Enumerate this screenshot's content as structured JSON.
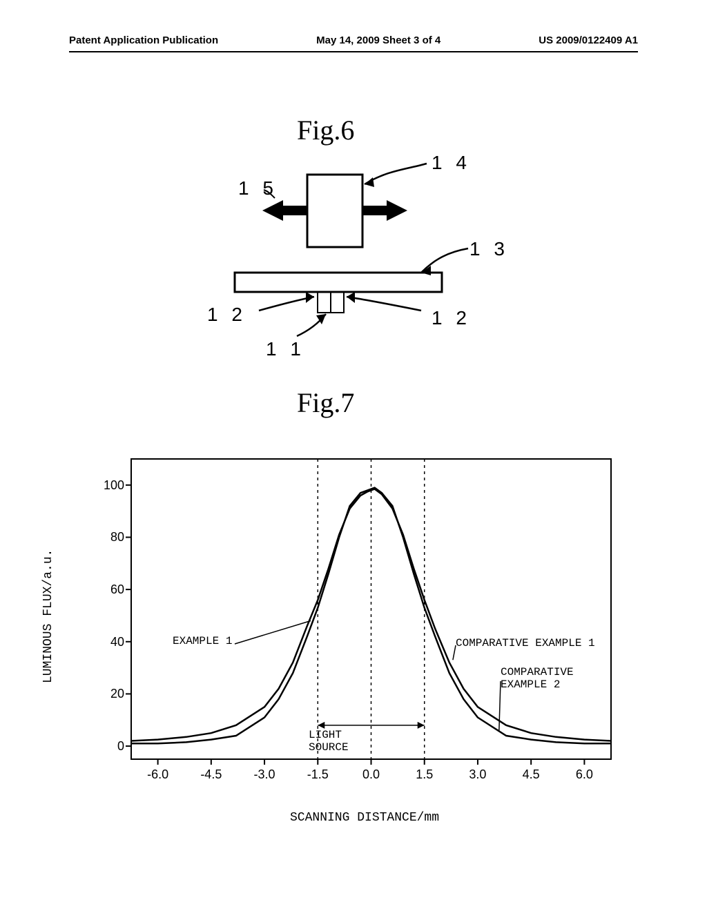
{
  "header": {
    "left": "Patent Application Publication",
    "center": "May 14, 2009  Sheet 3 of 4",
    "right": "US 2009/0122409 A1"
  },
  "fig6": {
    "title": "Fig.6",
    "labels": {
      "n11": "1 1",
      "n12a": "1 2",
      "n12b": "1 2",
      "n13": "1 3",
      "n14": "1 4",
      "n15": "1 5"
    }
  },
  "fig7": {
    "title": "Fig.7",
    "type": "line",
    "x_label": "SCANNING DISTANCE/mm",
    "y_label": "LUMINOUS FLUX/a.u.",
    "xlim": [
      -6.75,
      6.75
    ],
    "ylim": [
      -5,
      110
    ],
    "x_ticks": [
      -6.0,
      -4.5,
      -3.0,
      -1.5,
      0.0,
      1.5,
      3.0,
      4.5,
      6.0
    ],
    "y_ticks": [
      0,
      20,
      40,
      60,
      80,
      100
    ],
    "grid_color": "#000000",
    "background_color": "#ffffff",
    "vlines_dashed": [
      -1.5,
      0,
      1.5
    ],
    "light_source_label": "LIGHT\nSOURCE",
    "light_source_range": [
      -1.5,
      1.5
    ],
    "annotations": {
      "example1": "EXAMPLE 1",
      "comp1": "COMPARATIVE EXAMPLE 1",
      "comp2": "COMPARATIVE\nEXAMPLE 2"
    },
    "series": [
      {
        "name": "example1",
        "color": "#000000",
        "line_width": 2.5,
        "data": [
          [
            -6.75,
            1
          ],
          [
            -6.0,
            1
          ],
          [
            -5.2,
            1.5
          ],
          [
            -4.5,
            2.5
          ],
          [
            -3.8,
            4
          ],
          [
            -3.0,
            11
          ],
          [
            -2.6,
            18
          ],
          [
            -2.2,
            28
          ],
          [
            -1.8,
            42
          ],
          [
            -1.5,
            53
          ],
          [
            -1.2,
            66
          ],
          [
            -0.9,
            80
          ],
          [
            -0.6,
            92
          ],
          [
            -0.3,
            97
          ],
          [
            -0.1,
            98
          ],
          [
            0.1,
            99
          ],
          [
            0.3,
            97
          ],
          [
            0.6,
            92
          ],
          [
            0.9,
            80
          ],
          [
            1.2,
            66
          ],
          [
            1.5,
            53
          ],
          [
            1.8,
            42
          ],
          [
            2.2,
            28
          ],
          [
            2.6,
            18
          ],
          [
            3.0,
            11
          ],
          [
            3.8,
            4
          ],
          [
            4.5,
            2.5
          ],
          [
            5.2,
            1.5
          ],
          [
            6.0,
            1
          ],
          [
            6.75,
            1
          ]
        ]
      },
      {
        "name": "comparative1_2",
        "color": "#000000",
        "line_width": 2.5,
        "data": [
          [
            -6.75,
            2
          ],
          [
            -6.0,
            2.5
          ],
          [
            -5.2,
            3.5
          ],
          [
            -4.5,
            5
          ],
          [
            -3.8,
            8
          ],
          [
            -3.0,
            15
          ],
          [
            -2.6,
            22
          ],
          [
            -2.2,
            32
          ],
          [
            -1.8,
            46
          ],
          [
            -1.5,
            56
          ],
          [
            -1.2,
            68
          ],
          [
            -0.9,
            81
          ],
          [
            -0.6,
            91
          ],
          [
            -0.3,
            96
          ],
          [
            -0.1,
            97.5
          ],
          [
            0.1,
            98.5
          ],
          [
            0.3,
            96.5
          ],
          [
            0.6,
            91
          ],
          [
            0.9,
            81
          ],
          [
            1.2,
            68
          ],
          [
            1.5,
            56
          ],
          [
            1.8,
            45
          ],
          [
            2.2,
            32
          ],
          [
            2.6,
            22
          ],
          [
            3.0,
            15
          ],
          [
            3.8,
            8
          ],
          [
            4.5,
            5
          ],
          [
            5.2,
            3.5
          ],
          [
            6.0,
            2.5
          ],
          [
            6.75,
            2
          ]
        ]
      }
    ]
  }
}
